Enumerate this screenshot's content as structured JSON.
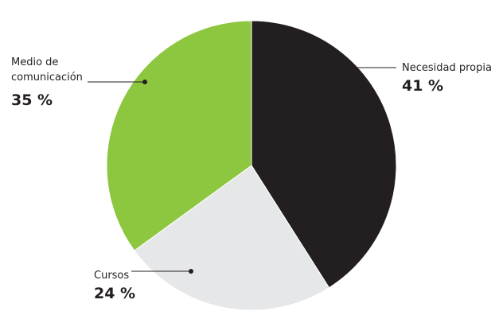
{
  "chart_data": {
    "type": "pie",
    "categories": [
      "Necesidad propia",
      "Cursos",
      "Medio de comunicación"
    ],
    "values": [
      41,
      24,
      35
    ],
    "value_labels": [
      "41 %",
      "24 %",
      "35 %"
    ],
    "colors": [
      "#231f20",
      "#e6e7e8",
      "#8dc63f"
    ]
  }
}
